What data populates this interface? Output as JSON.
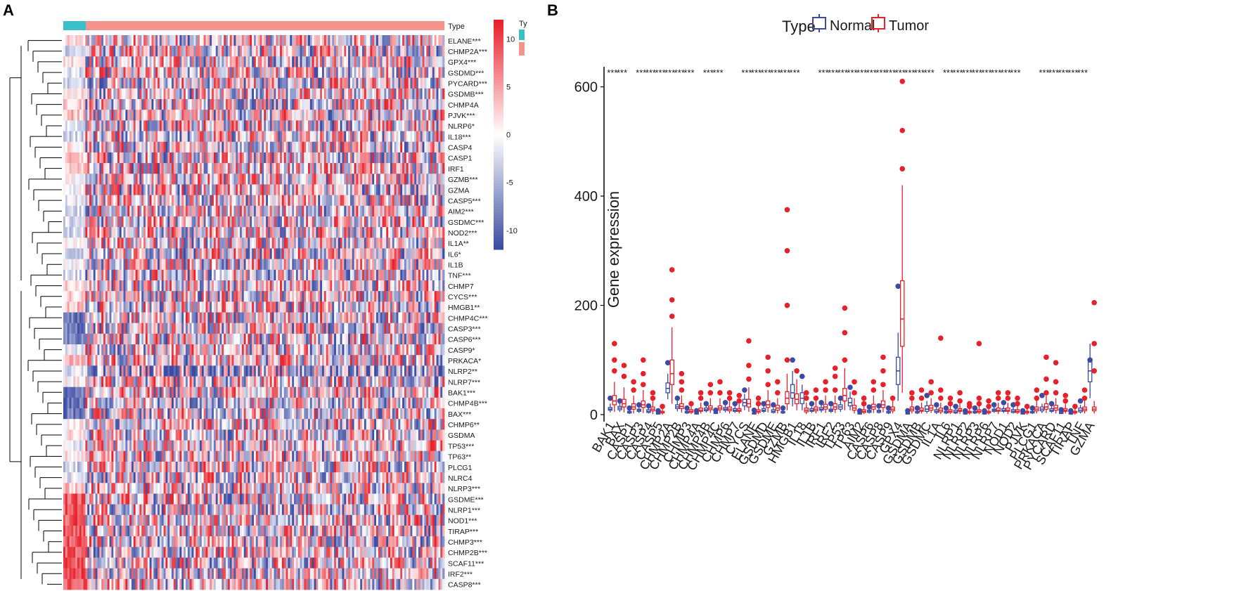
{
  "panel_a": {
    "letter": "A",
    "type_label": "Type",
    "legend_type_label": "Ty",
    "colorbar_ticks": [
      "10",
      "5",
      "0",
      "-5",
      "-10"
    ],
    "colors": {
      "normal": "#3bbfc9",
      "tumor": "#f4948a",
      "high": "#e8202a",
      "low": "#3b4ba3",
      "mid": "#ffffff"
    }
  },
  "panel_b": {
    "letter": "B",
    "legend_title": "Type",
    "legend_items": [
      {
        "name": "Normal",
        "color": "#3b4ba3"
      },
      {
        "name": "Tumor",
        "color": "#e8202a"
      }
    ],
    "y_ticks": [
      "0",
      "200",
      "400",
      "600"
    ]
  },
  "chart_data": [
    {
      "type": "heatmap",
      "title": "",
      "groups": [
        "Normal",
        "Tumor"
      ],
      "rows": [
        "ELANE***",
        "CHMP2A***",
        "GPX4***",
        "GSDMD***",
        "PYCARD***",
        "GSDMB***",
        "CHMP4A",
        "PJVK***",
        "NLRP6*",
        "IL18***",
        "CASP4",
        "CASP1",
        "IRF1",
        "GZMB***",
        "GZMA",
        "CASP5***",
        "AIM2***",
        "GSDMC***",
        "NOD2***",
        "IL1A**",
        "IL6*",
        "IL1B",
        "TNF***",
        "CHMP7",
        "CYCS***",
        "HMGB1**",
        "CHMP4C***",
        "CASP3***",
        "CASP6***",
        "CASP9*",
        "PRKACA*",
        "NLRP2**",
        "NLRP7***",
        "BAK1***",
        "CHMP4B***",
        "BAX***",
        "CHMP6**",
        "GSDMA",
        "TP53***",
        "TP63**",
        "PLCG1",
        "NLRC4",
        "NLRP3***",
        "GSDME***",
        "NLRP1***",
        "NOD1***",
        "TIRAP***",
        "CHMP3***",
        "CHMP2B***",
        "SCAF11***",
        "IRF2***",
        "CASP8***"
      ],
      "color_range": [
        -12,
        12
      ]
    },
    {
      "type": "box",
      "title": "",
      "xlabel": "",
      "ylabel": "Gene expression",
      "ylim": [
        0,
        620
      ],
      "categories": [
        "BAK1",
        "BAX",
        "CASP1",
        "CASP3",
        "CASP4",
        "CASP5",
        "CHMP2A",
        "CHMP2B",
        "CHMP3",
        "CHMP4A",
        "CHMP4B",
        "CHMP4C",
        "CHMP6",
        "CHMP7",
        "CYCS",
        "ELANE",
        "GSDMD",
        "GSDME",
        "GZMB",
        "HMGB1",
        "IL18",
        "IL1B",
        "IRF1",
        "IRF2",
        "TP53",
        "TP63",
        "AIM2",
        "CASP6",
        "CASP8",
        "CASP9",
        "GPX4",
        "GSDMA",
        "GSDMB",
        "GSDMC",
        "IL1A",
        "IL6",
        "NLRP1",
        "NLRP2",
        "NLRP3",
        "NLRP6",
        "NLRP7",
        "NOD1",
        "NOD2",
        "PJVK",
        "PLCG1",
        "PRKACA",
        "PYCARD",
        "SCAF11",
        "TIRAP",
        "TNF",
        "GZMA"
      ],
      "significance": [
        "***",
        "***",
        "",
        "***",
        "***",
        "***",
        "***",
        "***",
        "***",
        "",
        "***",
        "***",
        "",
        "",
        "***",
        "***",
        "***",
        "***",
        "***",
        "***",
        "",
        "",
        "***",
        "***",
        "***",
        "***",
        "***",
        "***",
        "***",
        "***",
        "***",
        "***",
        "***",
        "***",
        "",
        "***",
        "***",
        "***",
        "***",
        "***",
        "***",
        "***",
        "***",
        "",
        "",
        "***",
        "***",
        "***",
        "***",
        "***",
        ""
      ],
      "series": [
        {
          "name": "Normal",
          "color": "#3b4ba3",
          "median": [
            10,
            12,
            4,
            8,
            6,
            2,
            48,
            14,
            4,
            2,
            9,
            3,
            10,
            8,
            22,
            2,
            8,
            6,
            4,
            40,
            30,
            8,
            10,
            8,
            14,
            22,
            2,
            6,
            6,
            4,
            80,
            2,
            4,
            10,
            6,
            4,
            5,
            2,
            4,
            2,
            8,
            8,
            6,
            2,
            4,
            10,
            8,
            3,
            2,
            8,
            80
          ],
          "q1": [
            8,
            9,
            3,
            6,
            4,
            1,
            40,
            11,
            3,
            1,
            7,
            2,
            8,
            6,
            16,
            1,
            6,
            4,
            3,
            30,
            20,
            6,
            8,
            6,
            10,
            16,
            1,
            4,
            4,
            3,
            55,
            1,
            3,
            6,
            4,
            3,
            3,
            1,
            3,
            1,
            6,
            6,
            4,
            1,
            3,
            7,
            6,
            2,
            1,
            5,
            60
          ],
          "q3": [
            13,
            15,
            6,
            10,
            9,
            3,
            58,
            18,
            6,
            3,
            12,
            4,
            13,
            11,
            28,
            3,
            11,
            9,
            6,
            55,
            40,
            11,
            13,
            10,
            18,
            30,
            3,
            8,
            8,
            6,
            105,
            3,
            6,
            16,
            9,
            6,
            8,
            3,
            6,
            3,
            10,
            11,
            9,
            3,
            6,
            14,
            11,
            5,
            3,
            12,
            100
          ],
          "whisker_low": [
            4,
            5,
            1,
            3,
            2,
            0,
            28,
            6,
            1,
            0,
            4,
            1,
            4,
            3,
            8,
            0,
            3,
            2,
            1,
            15,
            8,
            3,
            4,
            3,
            5,
            8,
            0,
            2,
            2,
            1,
            25,
            0,
            1,
            2,
            1,
            1,
            1,
            0,
            1,
            0,
            3,
            3,
            2,
            0,
            1,
            3,
            3,
            1,
            0,
            2,
            30
          ],
          "whisker_high": [
            20,
            22,
            9,
            14,
            13,
            5,
            75,
            25,
            9,
            5,
            16,
            6,
            18,
            16,
            38,
            6,
            16,
            13,
            9,
            80,
            55,
            16,
            18,
            15,
            25,
            42,
            5,
            11,
            12,
            9,
            150,
            5,
            9,
            25,
            13,
            9,
            11,
            5,
            9,
            5,
            14,
            16,
            13,
            5,
            9,
            20,
            16,
            7,
            5,
            18,
            130
          ],
          "outliers": [
            [
              30
            ],
            [
              25
            ],
            [
              12
            ],
            [
              18
            ],
            [
              16
            ],
            [
              7
            ],
            [
              95
            ],
            [
              30
            ],
            [
              12
            ],
            [
              7
            ],
            [
              20
            ],
            [
              8
            ],
            [
              22
            ],
            [
              20
            ],
            [
              45
            ],
            [
              8
            ],
            [
              20
            ],
            [
              18
            ],
            [
              12
            ],
            [
              100
            ],
            [
              70
            ],
            [
              20
            ],
            [
              22
            ],
            [
              20
            ],
            [
              30
            ],
            [
              50
            ],
            [
              7
            ],
            [
              14
            ],
            [
              16
            ],
            [
              12
            ],
            [
              235
            ],
            [
              7
            ],
            [
              12
            ],
            [
              35
            ],
            [
              18
            ],
            [
              12
            ],
            [
              15
            ],
            [
              7
            ],
            [
              12
            ],
            [
              7
            ],
            [
              18
            ],
            [
              22
            ],
            [
              18
            ],
            [
              7
            ],
            [
              12
            ],
            [
              35
            ],
            [
              20
            ],
            [
              9
            ],
            [
              7
            ],
            [
              25
            ],
            [
              100
            ]
          ]
        },
        {
          "name": "Tumor",
          "color": "#e8202a",
          "median": [
            25,
            20,
            14,
            18,
            10,
            4,
            75,
            15,
            6,
            8,
            12,
            12,
            10,
            8,
            20,
            6,
            18,
            12,
            30,
            28,
            8,
            10,
            14,
            14,
            35,
            12,
            6,
            14,
            18,
            10,
            175,
            10,
            8,
            12,
            8,
            6,
            8,
            4,
            6,
            4,
            8,
            8,
            6,
            4,
            10,
            14,
            12,
            8,
            4,
            10,
            10
          ],
          "q1": [
            18,
            14,
            10,
            13,
            7,
            3,
            55,
            11,
            4,
            6,
            9,
            9,
            7,
            6,
            14,
            4,
            13,
            8,
            20,
            20,
            5,
            7,
            10,
            10,
            25,
            8,
            4,
            10,
            13,
            7,
            125,
            7,
            6,
            8,
            5,
            4,
            6,
            3,
            4,
            3,
            6,
            6,
            4,
            3,
            7,
            10,
            8,
            6,
            3,
            7,
            7
          ],
          "q3": [
            35,
            28,
            20,
            25,
            14,
            6,
            100,
            20,
            9,
            12,
            16,
            16,
            14,
            11,
            28,
            9,
            25,
            17,
            42,
            38,
            12,
            14,
            19,
            20,
            48,
            17,
            9,
            19,
            25,
            14,
            245,
            14,
            12,
            17,
            12,
            9,
            11,
            6,
            9,
            6,
            12,
            12,
            9,
            6,
            14,
            20,
            17,
            11,
            6,
            14,
            14
          ],
          "whisker_low": [
            5,
            4,
            2,
            3,
            1,
            0,
            20,
            4,
            1,
            2,
            3,
            3,
            2,
            2,
            5,
            1,
            4,
            2,
            8,
            8,
            1,
            2,
            3,
            3,
            8,
            2,
            1,
            3,
            4,
            2,
            40,
            2,
            2,
            3,
            1,
            1,
            1,
            0,
            1,
            0,
            1,
            1,
            1,
            0,
            2,
            3,
            2,
            2,
            0,
            2,
            2
          ],
          "whisker_high": [
            60,
            50,
            35,
            45,
            25,
            11,
            160,
            35,
            16,
            22,
            30,
            30,
            25,
            20,
            50,
            16,
            45,
            30,
            75,
            65,
            22,
            25,
            35,
            35,
            85,
            30,
            16,
            35,
            45,
            25,
            420,
            25,
            22,
            30,
            22,
            16,
            20,
            11,
            16,
            11,
            22,
            22,
            16,
            11,
            25,
            35,
            30,
            20,
            11,
            25,
            25
          ],
          "outliers": [
            [
              80,
              100,
              130
            ],
            [
              70,
              90
            ],
            [
              45,
              60
            ],
            [
              55,
              75,
              100
            ],
            [
              30,
              40
            ],
            [
              15
            ],
            [
              180,
              210,
              265
            ],
            [
              45,
              60,
              75
            ],
            [
              20
            ],
            [
              30,
              40
            ],
            [
              40,
              55
            ],
            [
              40,
              60
            ],
            [
              30,
              40
            ],
            [
              25,
              35
            ],
            [
              65,
              90,
              135
            ],
            [
              20,
              30
            ],
            [
              55,
              80,
              105
            ],
            [
              40,
              60
            ],
            [
              100,
              200,
              300,
              375
            ],
            [
              80
            ],
            [
              30,
              40
            ],
            [
              30,
              45
            ],
            [
              45,
              60
            ],
            [
              45,
              70,
              85
            ],
            [
              100,
              150,
              195
            ],
            [
              40,
              60
            ],
            [
              20,
              30
            ],
            [
              45,
              60
            ],
            [
              55,
              80,
              105
            ],
            [
              30
            ],
            [
              450,
              520,
              610
            ],
            [
              30,
              40
            ],
            [
              30,
              45
            ],
            [
              40,
              60
            ],
            [
              30,
              45,
              140
            ],
            [
              20,
              30
            ],
            [
              25,
              40
            ],
            [
              15,
              20
            ],
            [
              20,
              30,
              130
            ],
            [
              15,
              25
            ],
            [
              30,
              40
            ],
            [
              30,
              40
            ],
            [
              20,
              30
            ],
            [
              15
            ],
            [
              30,
              45
            ],
            [
              40,
              65,
              105
            ],
            [
              40,
              60,
              95
            ],
            [
              25,
              35
            ],
            [
              15
            ],
            [
              30,
              45
            ],
            [
              80,
              130,
              205
            ]
          ]
        }
      ]
    }
  ]
}
